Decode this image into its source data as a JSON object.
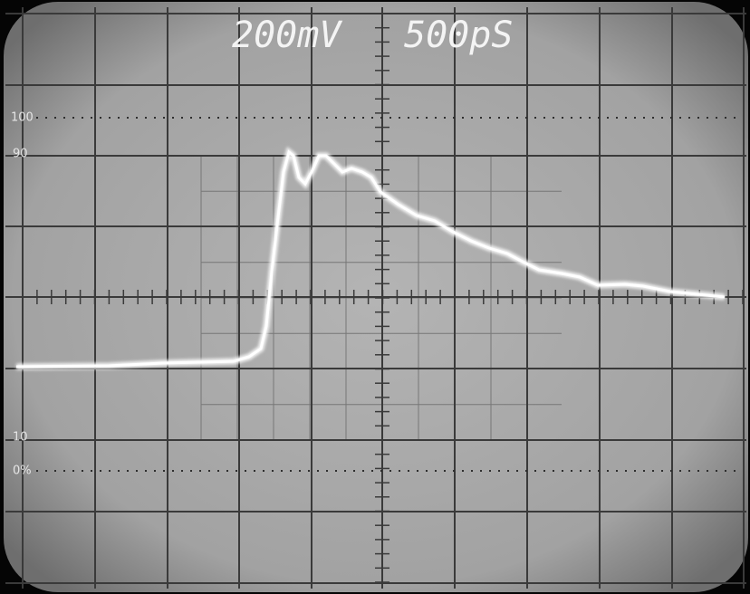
{
  "screen": {
    "volts_per_div": "200mV",
    "time_per_div": "500pS",
    "scale_labels": [
      "100",
      "90",
      "10",
      "0%"
    ]
  }
}
